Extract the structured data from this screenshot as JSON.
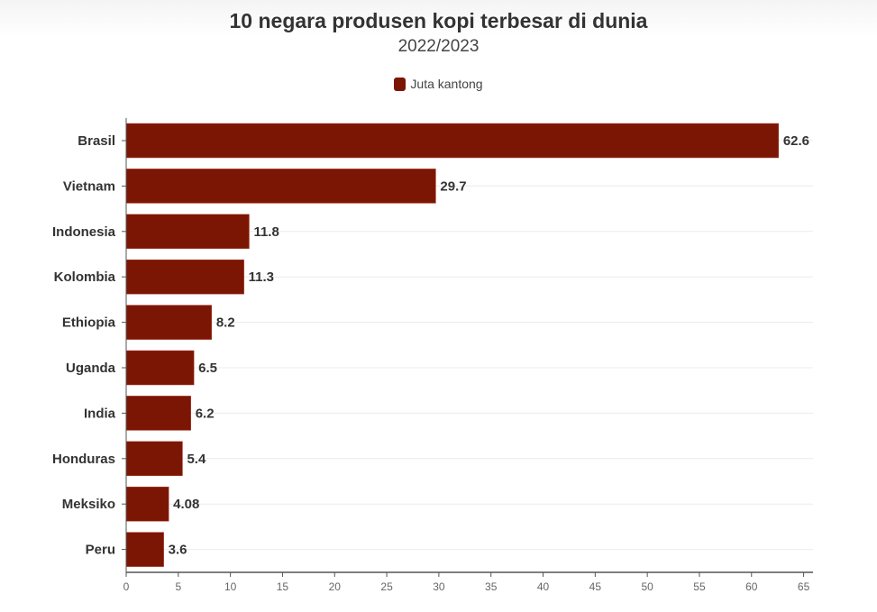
{
  "chart_data": {
    "type": "bar",
    "orientation": "horizontal",
    "title": "10 negara produsen kopi terbesar di dunia",
    "subtitle": "2022/2023",
    "categories": [
      "Brasil",
      "Vietnam",
      "Indonesia",
      "Kolombia",
      "Ethiopia",
      "Uganda",
      "India",
      "Honduras",
      "Meksiko",
      "Peru"
    ],
    "series": [
      {
        "name": "Juta kantong",
        "values": [
          62.6,
          29.7,
          11.8,
          11.3,
          8.2,
          6.5,
          6.2,
          5.4,
          4.08,
          3.6
        ],
        "color": "#7b1604"
      }
    ],
    "value_labels": [
      "62.6",
      "29.7",
      "11.8",
      "11.3",
      "8.2",
      "6.5",
      "6.2",
      "5.4",
      "4.08",
      "3.6"
    ],
    "xlim": [
      0,
      65.9
    ],
    "xticks": [
      0,
      5,
      10,
      15,
      20,
      25,
      30,
      35,
      40,
      45,
      50,
      55,
      60,
      65
    ],
    "grid": true,
    "legend": "top-center"
  }
}
